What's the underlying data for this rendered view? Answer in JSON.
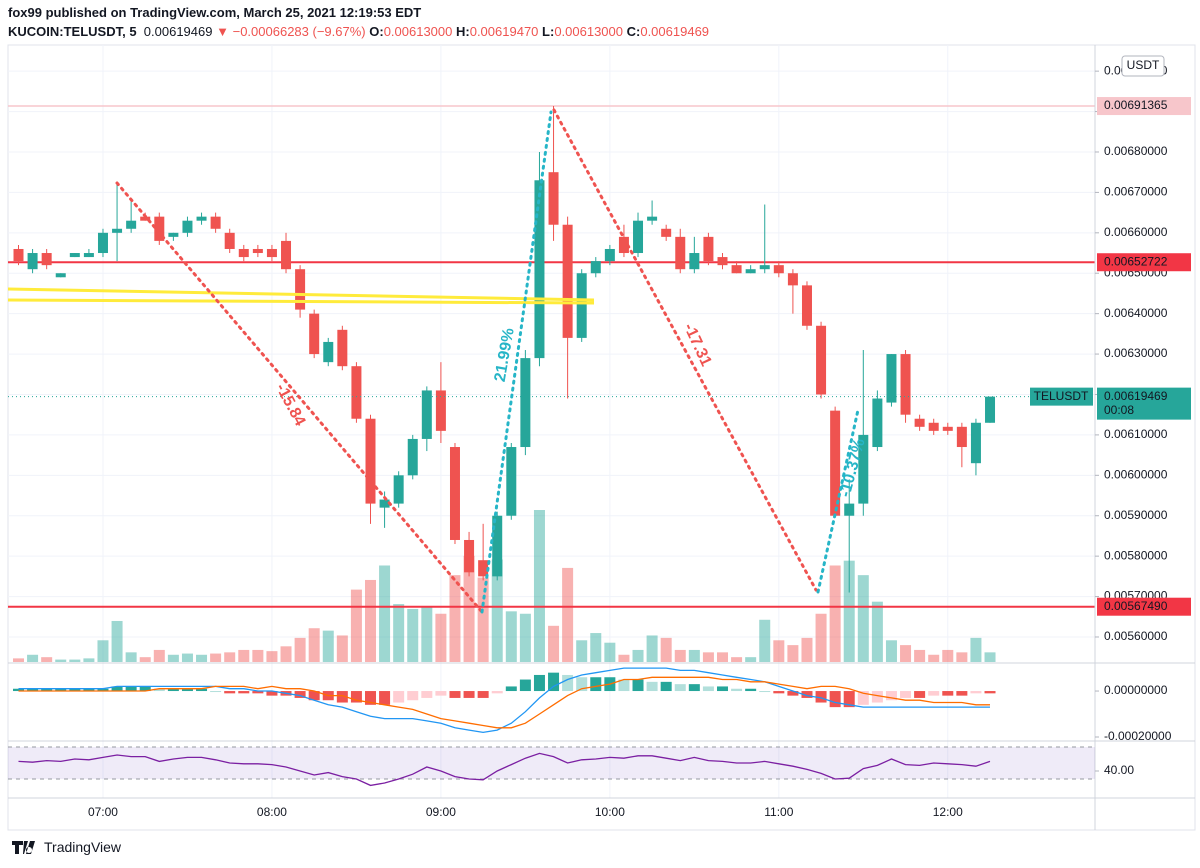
{
  "chart_data": {
    "type": "candlestick",
    "publisher": "fox99 published on TradingView.com, March 25, 2021 12:19:53 EDT",
    "title": "KUCOIN:TELUSDT, 5",
    "last_text": "0.00619469",
    "change_arrow": "▼",
    "change": "−0.00066283 (−9.67%)",
    "ohlc_header": [
      {
        "key": "O:",
        "value": "0.00613000"
      },
      {
        "key": "H:",
        "value": "0.00619470"
      },
      {
        "key": "L:",
        "value": "0.00613000"
      },
      {
        "key": "C:",
        "value": "0.00619469"
      }
    ],
    "currency": "USDT",
    "brand": "TradingView",
    "categories": [
      null,
      null,
      null,
      null,
      null,
      null,
      "07:00",
      null,
      null,
      null,
      null,
      null,
      null,
      null,
      null,
      null,
      null,
      null,
      "08:00",
      null,
      null,
      null,
      null,
      null,
      null,
      null,
      null,
      null,
      null,
      null,
      "09:00",
      null,
      null,
      null,
      null,
      null,
      null,
      null,
      null,
      null,
      null,
      null,
      "10:00",
      null,
      null,
      null,
      null,
      null,
      null,
      null,
      null,
      null,
      null,
      null,
      "11:00",
      null,
      null,
      null,
      null,
      null,
      null,
      null,
      null,
      null,
      null,
      null,
      "12:00",
      null,
      null,
      null
    ],
    "open": [
      0.00656,
      0.00651,
      0.00655,
      0.00649,
      0.00654,
      0.00654,
      0.00655,
      0.0066,
      0.00661,
      0.00664,
      0.00664,
      0.00659,
      0.0066,
      0.00663,
      0.00664,
      0.0066,
      0.00656,
      0.00656,
      0.00656,
      0.00658,
      0.00651,
      0.0064,
      0.00628,
      0.00636,
      0.00627,
      0.00614,
      0.00592,
      0.00593,
      0.006,
      0.00609,
      0.00621,
      0.00607,
      0.00584,
      0.00579,
      0.00575,
      0.0059,
      0.00607,
      0.00629,
      0.00675,
      0.00662,
      0.00634,
      0.0065,
      0.00653,
      0.00659,
      0.00655,
      0.00663,
      0.00661,
      0.00659,
      0.00651,
      0.00659,
      0.00654,
      0.00652,
      0.0065,
      0.00651,
      0.00652,
      0.0065,
      0.00647,
      0.00637,
      0.00616,
      0.0059,
      0.00593,
      0.00607,
      0.00618,
      0.0063,
      0.00614,
      0.00613,
      0.00612,
      0.00612,
      0.00603,
      0.00613
    ],
    "high": [
      0.00657,
      0.00656,
      0.00656,
      0.0065,
      0.00655,
      0.00656,
      0.00661,
      0.00672,
      0.00668,
      0.00665,
      0.00665,
      0.0066,
      0.00664,
      0.00665,
      0.00665,
      0.00661,
      0.00657,
      0.00657,
      0.00657,
      0.0066,
      0.00652,
      0.00641,
      0.00634,
      0.00637,
      0.00628,
      0.00615,
      0.00596,
      0.00601,
      0.0061,
      0.00622,
      0.00628,
      0.00608,
      0.00586,
      0.00588,
      0.00591,
      0.00608,
      0.00631,
      0.0068,
      0.00691365,
      0.00664,
      0.00651,
      0.00654,
      0.00657,
      0.00662,
      0.00665,
      0.00668,
      0.00662,
      0.00661,
      0.00659,
      0.0066,
      0.00655,
      0.00653,
      0.00652,
      0.00667,
      0.00653,
      0.00651,
      0.00648,
      0.00638,
      0.00617,
      0.00599,
      0.00631,
      0.00621,
      0.0063,
      0.00631,
      0.00615,
      0.00614,
      0.00613,
      0.00613,
      0.00614,
      0.0061947
    ],
    "low": [
      0.00652,
      0.0065,
      0.00651,
      0.00649,
      0.00654,
      0.00654,
      0.00654,
      0.00653,
      0.0066,
      0.00663,
      0.00657,
      0.00658,
      0.00659,
      0.00662,
      0.0066,
      0.00655,
      0.00653,
      0.00654,
      0.00653,
      0.0065,
      0.00639,
      0.00629,
      0.00627,
      0.00626,
      0.00613,
      0.00588,
      0.00587,
      0.00592,
      0.00599,
      0.00606,
      0.00608,
      0.00583,
      0.00575,
      0.00574,
      0.00574,
      0.00589,
      0.00605,
      0.00627,
      0.00658,
      0.00619,
      0.00633,
      0.00649,
      0.00652,
      0.00654,
      0.00654,
      0.00662,
      0.00658,
      0.0065,
      0.0065,
      0.00652,
      0.00651,
      0.0065,
      0.0065,
      0.0065,
      0.00649,
      0.0064,
      0.00636,
      0.00619,
      0.0059,
      0.00571,
      0.0059,
      0.00606,
      0.00617,
      0.00613,
      0.00611,
      0.0061,
      0.0061,
      0.00602,
      0.006,
      0.00613
    ],
    "close": [
      0.00653,
      0.00655,
      0.00652,
      0.0065,
      0.00655,
      0.00655,
      0.0066,
      0.00661,
      0.00663,
      0.00663,
      0.00658,
      0.0066,
      0.00663,
      0.00664,
      0.00661,
      0.00656,
      0.00654,
      0.00655,
      0.00654,
      0.00651,
      0.00641,
      0.0063,
      0.00633,
      0.00627,
      0.00614,
      0.00593,
      0.00594,
      0.006,
      0.00609,
      0.00621,
      0.00611,
      0.00584,
      0.00576,
      0.00575,
      0.0059,
      0.00607,
      0.00629,
      0.00673,
      0.00662,
      0.00634,
      0.0065,
      0.00653,
      0.00656,
      0.00655,
      0.00663,
      0.00664,
      0.00659,
      0.00651,
      0.00655,
      0.00653,
      0.00652,
      0.0065,
      0.00651,
      0.00652,
      0.0065,
      0.00647,
      0.00637,
      0.0062,
      0.0059,
      0.00593,
      0.0061,
      0.00619,
      0.0063,
      0.00615,
      0.00612,
      0.00611,
      0.00611,
      0.00607,
      0.00613,
      0.00619469
    ],
    "volume": [
      3,
      6,
      4,
      2,
      2,
      3,
      18,
      34,
      8,
      4,
      10,
      6,
      7,
      6,
      7,
      8,
      10,
      10,
      9,
      13,
      20,
      28,
      26,
      22,
      60,
      68,
      80,
      48,
      44,
      46,
      40,
      72,
      88,
      70,
      85,
      42,
      40,
      126,
      30,
      78,
      18,
      24,
      16,
      6,
      10,
      22,
      20,
      10,
      10,
      8,
      8,
      4,
      4,
      35,
      18,
      14,
      20,
      40,
      80,
      84,
      72,
      50,
      18,
      14,
      10,
      6,
      10,
      8,
      20,
      8
    ],
    "up_color": "#26a69a",
    "down_color": "#ef5350",
    "ylim": [
      0.0055381,
      0.0070647
    ],
    "yticks": [
      {
        "value": 0.0056,
        "label": "0.00560000"
      },
      {
        "value": 0.0057,
        "label": "0.00570000"
      },
      {
        "value": 0.0058,
        "label": "0.00580000"
      },
      {
        "value": 0.0059,
        "label": "0.00590000"
      },
      {
        "value": 0.006,
        "label": "0.00600000"
      },
      {
        "value": 0.0061,
        "label": "0.00610000"
      },
      {
        "value": 0.0062,
        "label": "0.00620000"
      },
      {
        "value": 0.0063,
        "label": "0.00630000"
      },
      {
        "value": 0.0064,
        "label": "0.00640000"
      },
      {
        "value": 0.0065,
        "label": "0.00650000"
      },
      {
        "value": 0.0066,
        "label": "0.00660000"
      },
      {
        "value": 0.0067,
        "label": "0.00670000"
      },
      {
        "value": 0.0068,
        "label": "0.00680000"
      },
      {
        "value": 0.0069,
        "label": "0.00690000"
      },
      {
        "value": 0.007,
        "label": "0.00700000"
      }
    ],
    "grid": true,
    "hlines": [
      {
        "value": 0.00691365,
        "label": "0.00691365",
        "color": "#f7c6cb",
        "text_color": "#131722"
      },
      {
        "value": 0.00652722,
        "label": "0.00652722",
        "color": "#f23645",
        "text_color": "#ffffff"
      },
      {
        "value": 0.0056749,
        "label": "0.00567490",
        "color": "#f23645",
        "text_color": "#ffffff"
      }
    ],
    "last_price": {
      "value": 0.00619469,
      "label": "0.00619469",
      "symbol": "TELUSDT",
      "countdown": "00:08",
      "color": "#26a69a"
    },
    "annotations": [
      {
        "text": "-15.84",
        "color": "#ef5350"
      },
      {
        "text": "21.99%",
        "color": "#26b5c7"
      },
      {
        "text": "-17.31",
        "color": "#ef5350"
      },
      {
        "text": "-10.37%",
        "color": "#26b5c7"
      }
    ],
    "macd": {
      "ylim": [
        -0.000213,
        0.000122
      ],
      "yticks": [
        {
          "value": 0,
          "label": "0.00000000"
        },
        {
          "value": -0.0002,
          "label": "-0.00020000"
        }
      ],
      "hist": [
        1e-05,
        1e-05,
        1e-05,
        1e-05,
        1e-05,
        1e-05,
        1e-05,
        2e-05,
        2e-05,
        2e-05,
        1e-05,
        1e-05,
        1e-05,
        1e-05,
        0,
        -1e-05,
        -1e-05,
        -1e-05,
        -2e-05,
        -2e-05,
        -3e-05,
        -4e-05,
        -4e-05,
        -5e-05,
        -5e-05,
        -6e-05,
        -6e-05,
        -5e-05,
        -4e-05,
        -3e-05,
        -2e-05,
        -3e-05,
        -3e-05,
        -3e-05,
        -1e-05,
        2e-05,
        5e-05,
        7e-05,
        8e-05,
        7e-05,
        6e-05,
        6e-05,
        6e-05,
        5e-05,
        5e-05,
        4e-05,
        4e-05,
        3e-05,
        3e-05,
        2e-05,
        2e-05,
        1e-05,
        1e-05,
        0,
        -1e-05,
        -2e-05,
        -3e-05,
        -5e-05,
        -7e-05,
        -7e-05,
        -6e-05,
        -5e-05,
        -4e-05,
        -3e-05,
        -3e-05,
        -2e-05,
        -2e-05,
        -2e-05,
        -1e-05,
        -1e-05
      ],
      "macd": [
        1e-05,
        1e-05,
        1e-05,
        1e-05,
        1e-05,
        1e-05,
        1e-05,
        2e-05,
        2e-05,
        2e-05,
        2e-05,
        2e-05,
        2e-05,
        2e-05,
        2e-05,
        1e-05,
        1e-05,
        0,
        0,
        -1e-05,
        -2e-05,
        -4e-05,
        -6e-05,
        -7e-05,
        -9e-05,
        -0.00011,
        -0.00012,
        -0.00012,
        -0.00012,
        -0.00013,
        -0.00014,
        -0.00016,
        -0.00017,
        -0.00018,
        -0.00017,
        -0.00014,
        -9e-05,
        -3e-05,
        2e-05,
        5e-05,
        7e-05,
        8e-05,
        9e-05,
        0.0001,
        0.0001,
        0.0001,
        0.0001,
        9e-05,
        9e-05,
        8e-05,
        7e-05,
        6e-05,
        5e-05,
        4e-05,
        2e-05,
        0,
        -2e-05,
        -3e-05,
        -5e-05,
        -6e-05,
        -7e-05,
        -7e-05,
        -7e-05,
        -7e-05,
        -7e-05,
        -7e-05,
        -7e-05,
        -7e-05,
        -7e-05,
        -7e-05
      ],
      "signal": [
        0,
        0,
        0,
        0,
        0,
        0,
        0,
        0,
        0,
        0,
        1e-05,
        1e-05,
        1e-05,
        1e-05,
        2e-05,
        2e-05,
        2e-05,
        1e-05,
        2e-05,
        1e-05,
        1e-05,
        0,
        -2e-05,
        -2e-05,
        -4e-05,
        -5e-05,
        -6e-05,
        -7e-05,
        -8e-05,
        -0.0001,
        -0.00012,
        -0.00013,
        -0.00014,
        -0.00015,
        -0.00016,
        -0.00016,
        -0.00014,
        -0.0001,
        -6e-05,
        -2e-05,
        1e-05,
        2e-05,
        3e-05,
        5e-05,
        5e-05,
        6e-05,
        6e-05,
        6e-05,
        6e-05,
        6e-05,
        5e-05,
        5e-05,
        4e-05,
        4e-05,
        3e-05,
        2e-05,
        1e-05,
        2e-05,
        2e-05,
        1e-05,
        -1e-05,
        -2e-05,
        -3e-05,
        -4e-05,
        -4e-05,
        -5e-05,
        -5e-05,
        -5e-05,
        -6e-05,
        -6e-05
      ],
      "macd_color": "#2196f3",
      "signal_color": "#ff6d00"
    },
    "rsi": {
      "ylim": [
        10,
        76.25
      ],
      "yticks": [
        {
          "value": 40,
          "label": "40.00"
        }
      ],
      "band": [
        30,
        70
      ],
      "values": [
        52,
        51,
        53,
        52,
        55,
        54,
        57,
        60,
        58,
        58,
        52,
        55,
        57,
        57,
        54,
        50,
        49,
        49,
        48,
        45,
        40,
        35,
        38,
        33,
        30,
        22,
        25,
        30,
        36,
        45,
        40,
        33,
        30,
        29,
        40,
        48,
        56,
        62,
        58,
        50,
        54,
        55,
        57,
        56,
        59,
        59,
        56,
        53,
        57,
        53,
        52,
        50,
        50,
        52,
        49,
        46,
        42,
        37,
        30,
        31,
        43,
        47,
        55,
        48,
        47,
        50,
        49,
        48,
        46,
        52
      ],
      "color": "#7b1fa2"
    }
  }
}
